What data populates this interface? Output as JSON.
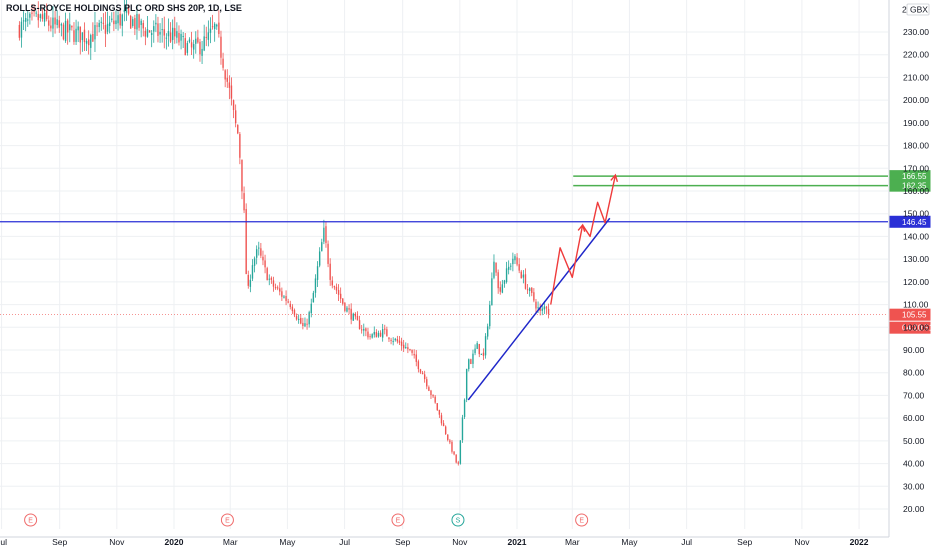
{
  "header": {
    "title": "ROLLS-ROYCE HOLDINGS PLC ORD SHS 20P, 1D, LSE",
    "currency_button": "GBX",
    "zoom_label": "2"
  },
  "colors": {
    "up": "#26a69a",
    "down": "#ef5350",
    "horizontal_line": "#2a2fd6",
    "trend_line": "#1f27c9",
    "target_line": "#4caf50",
    "arrow": "#ef3b3b",
    "current_price": "#ef5350",
    "event_earnings": "#ef6a6a",
    "event_split": "#26a69a"
  },
  "chart_data": {
    "type": "candlestick",
    "title": "ROLLS-ROYCE HOLDINGS PLC ORD SHS 20P, 1D, LSE",
    "currency": "GBX",
    "ylim": [
      14,
      242
    ],
    "y_ticks": [
      "20.00",
      "30.00",
      "40.00",
      "50.00",
      "60.00",
      "70.00",
      "80.00",
      "90.00",
      "100.00",
      "110.00",
      "120.00",
      "130.00",
      "140.00",
      "150.00",
      "160.00",
      "170.00",
      "180.00",
      "190.00",
      "200.00",
      "210.00",
      "220.00",
      "230.00"
    ],
    "x_ticks": [
      {
        "label": "Jul",
        "date": "2019-07-01",
        "bold": false
      },
      {
        "label": "Sep",
        "date": "2019-09-01",
        "bold": false
      },
      {
        "label": "Nov",
        "date": "2019-11-01",
        "bold": false
      },
      {
        "label": "2020",
        "date": "2020-01-01",
        "bold": true
      },
      {
        "label": "Mar",
        "date": "2020-03-01",
        "bold": false
      },
      {
        "label": "May",
        "date": "2020-05-01",
        "bold": false
      },
      {
        "label": "Jul",
        "date": "2020-07-01",
        "bold": false
      },
      {
        "label": "Sep",
        "date": "2020-09-01",
        "bold": false
      },
      {
        "label": "Nov",
        "date": "2020-11-01",
        "bold": false
      },
      {
        "label": "2021",
        "date": "2021-01-01",
        "bold": true
      },
      {
        "label": "Mar",
        "date": "2021-03-01",
        "bold": false
      },
      {
        "label": "May",
        "date": "2021-05-01",
        "bold": false
      },
      {
        "label": "Jul",
        "date": "2021-07-01",
        "bold": false
      },
      {
        "label": "Sep",
        "date": "2021-09-01",
        "bold": false
      },
      {
        "label": "Nov",
        "date": "2021-11-01",
        "bold": false
      },
      {
        "label": "2022",
        "date": "2022-01-01",
        "bold": true
      }
    ],
    "price_path": [
      [
        "2019-07-20",
        232
      ],
      [
        "2019-08-10",
        236
      ],
      [
        "2019-09-01",
        231
      ],
      [
        "2019-10-01",
        228
      ],
      [
        "2019-10-25",
        233
      ],
      [
        "2019-11-10",
        237
      ],
      [
        "2019-12-01",
        231
      ],
      [
        "2020-01-01",
        228
      ],
      [
        "2020-01-20",
        222
      ],
      [
        "2020-02-05",
        226
      ],
      [
        "2020-02-14",
        232
      ],
      [
        "2020-02-22",
        218
      ],
      [
        "2020-02-29",
        204
      ],
      [
        "2020-03-06",
        190
      ],
      [
        "2020-03-10",
        184
      ],
      [
        "2020-03-12",
        171
      ],
      [
        "2020-03-16",
        148
      ],
      [
        "2020-03-19",
        112
      ],
      [
        "2020-03-24",
        128
      ],
      [
        "2020-03-31",
        134
      ],
      [
        "2020-04-07",
        125
      ],
      [
        "2020-04-14",
        119
      ],
      [
        "2020-04-21",
        116
      ],
      [
        "2020-04-28",
        113
      ],
      [
        "2020-05-05",
        110
      ],
      [
        "2020-05-12",
        104
      ],
      [
        "2020-05-19",
        99
      ],
      [
        "2020-05-26",
        108
      ],
      [
        "2020-06-05",
        133
      ],
      [
        "2020-06-09",
        142
      ],
      [
        "2020-06-16",
        122
      ],
      [
        "2020-06-30",
        110
      ],
      [
        "2020-07-14",
        102
      ],
      [
        "2020-07-28",
        96
      ],
      [
        "2020-08-11",
        98
      ],
      [
        "2020-08-25",
        94
      ],
      [
        "2020-09-08",
        90
      ],
      [
        "2020-09-22",
        80
      ],
      [
        "2020-10-06",
        66
      ],
      [
        "2020-10-13",
        58
      ],
      [
        "2020-10-20",
        50
      ],
      [
        "2020-10-27",
        42
      ],
      [
        "2020-10-30",
        38
      ],
      [
        "2020-11-03",
        56
      ],
      [
        "2020-11-06",
        68
      ],
      [
        "2020-11-09",
        88
      ],
      [
        "2020-11-12",
        84
      ],
      [
        "2020-11-19",
        92
      ],
      [
        "2020-11-26",
        86
      ],
      [
        "2020-12-03",
        110
      ],
      [
        "2020-12-08",
        134
      ],
      [
        "2020-12-12",
        116
      ],
      [
        "2020-12-18",
        121
      ],
      [
        "2020-12-28",
        131
      ],
      [
        "2021-01-05",
        124
      ],
      [
        "2021-01-12",
        117
      ],
      [
        "2021-01-19",
        112
      ],
      [
        "2021-01-26",
        106
      ],
      [
        "2021-02-01",
        110
      ],
      [
        "2021-02-05",
        105.55
      ]
    ],
    "current_price": 105.55,
    "countdown": "04:20:51",
    "current_price_label": "105.55",
    "resistance_level": 146.45,
    "resistance_label": "146.45",
    "targets": [
      {
        "value": 166.55,
        "label": "166.55"
      },
      {
        "value": 162.35,
        "label": "162.35"
      }
    ],
    "trendline": {
      "start": [
        "2020-11-10",
        68
      ],
      "end": [
        "2021-04-10",
        148
      ]
    },
    "projection_arrow": [
      [
        "2021-02-06",
        110
      ],
      [
        "2021-02-16",
        135
      ],
      [
        "2021-03-01",
        122
      ],
      [
        "2021-03-12",
        145
      ],
      [
        "2021-03-20",
        140
      ],
      [
        "2021-03-28",
        155
      ],
      [
        "2021-04-05",
        146
      ],
      [
        "2021-04-16",
        167
      ]
    ],
    "events": [
      {
        "type": "E",
        "date": "2019-08-01",
        "kind": "earnings"
      },
      {
        "type": "E",
        "date": "2020-02-27",
        "kind": "earnings"
      },
      {
        "type": "E",
        "date": "2020-08-27",
        "kind": "earnings"
      },
      {
        "type": "S",
        "date": "2020-10-30",
        "kind": "split"
      },
      {
        "type": "E",
        "date": "2021-03-11",
        "kind": "earnings"
      }
    ]
  }
}
